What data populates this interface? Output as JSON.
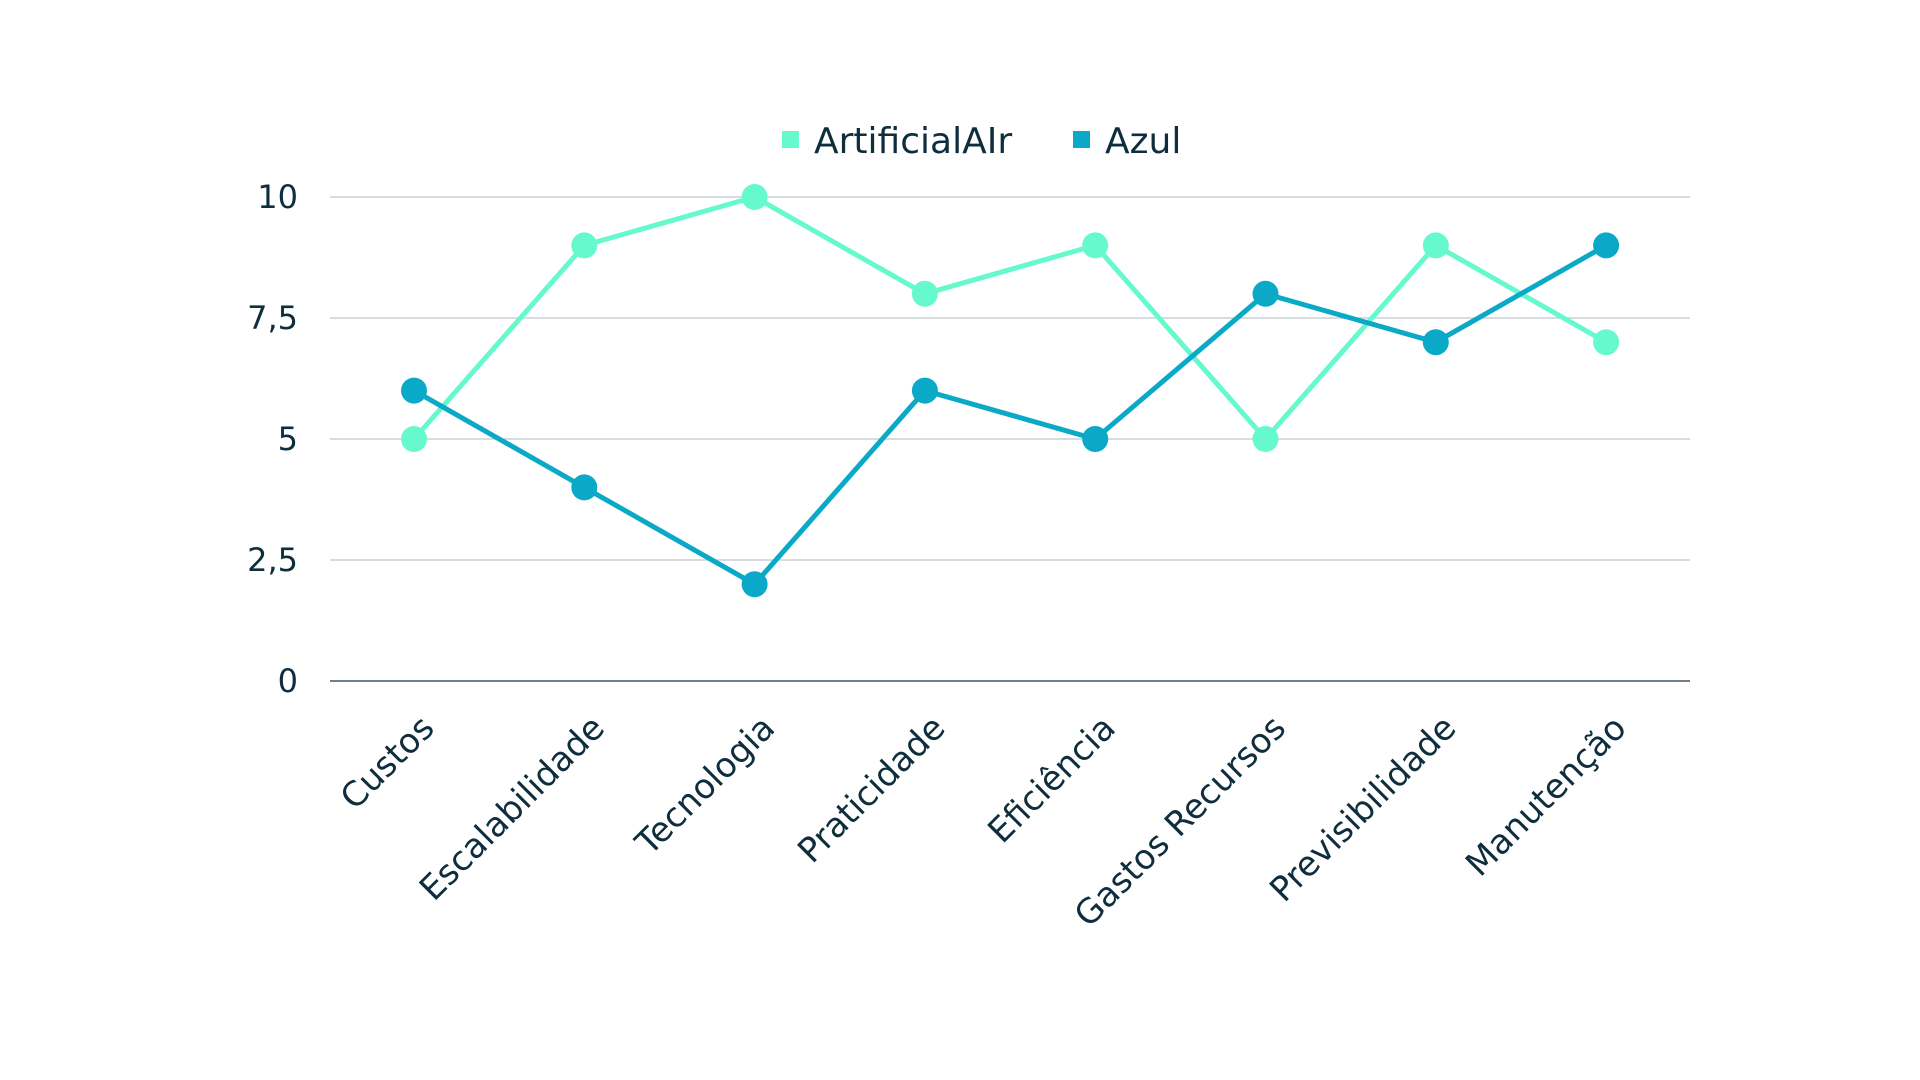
{
  "chart_data": {
    "type": "line",
    "title": "",
    "xlabel": "",
    "ylabel": "",
    "categories": [
      "Custos",
      "Escalabilidade",
      "Tecnologia",
      "Praticidade",
      "Eficiência",
      "Gastos Recursos",
      "Previsibilidade",
      "Manutenção"
    ],
    "series": [
      {
        "name": "ArtificialAIr",
        "color": "#66f9cd",
        "values": [
          5,
          9,
          10,
          8,
          9,
          5,
          9,
          7
        ]
      },
      {
        "name": "Azul",
        "color": "#0aa9c7",
        "values": [
          6,
          4,
          2,
          6,
          5,
          8,
          7,
          9
        ]
      }
    ],
    "ylim": [
      0,
      10
    ],
    "yticks": [
      0,
      2.5,
      5,
      7.5,
      10
    ],
    "ytick_labels": [
      "0",
      "2,5",
      "5",
      "7,5",
      "10"
    ],
    "grid": true,
    "legend_position": "top-center"
  }
}
